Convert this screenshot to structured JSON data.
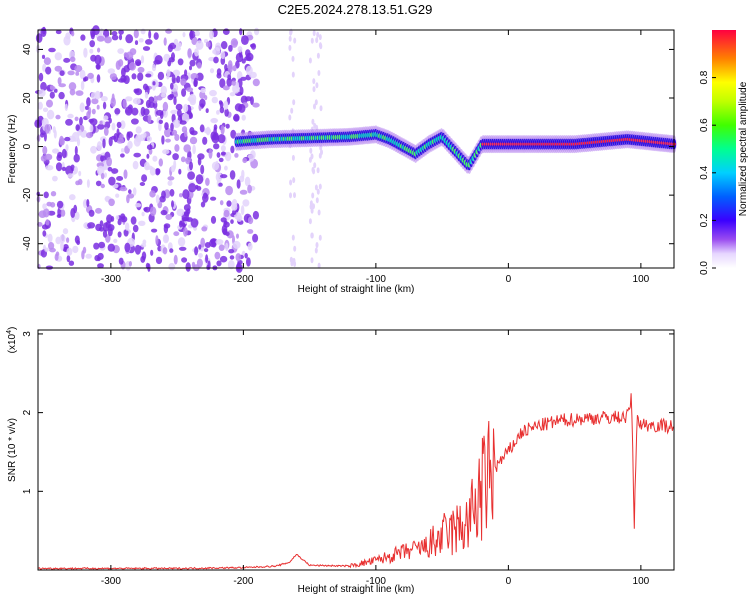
{
  "title": "C2E5.2024.278.13.51.G29",
  "chart_data": [
    {
      "type": "heatmap",
      "xlabel": "Height of straight line (km)",
      "ylabel": "Frequency (Hz)",
      "xlim": [
        -355,
        125
      ],
      "ylim": [
        -50,
        48
      ],
      "x_ticks": [
        -300,
        -200,
        -100,
        0,
        100
      ],
      "y_ticks": [
        -40,
        -20,
        0,
        20,
        40
      ],
      "noise_region": {
        "x_from": -355,
        "x_to": -190
      },
      "signal_ridge": {
        "x": [
          -205,
          -180,
          -150,
          -120,
          -100,
          -90,
          -80,
          -70,
          -60,
          -50,
          -40,
          -30,
          -20,
          0,
          50,
          90,
          125
        ],
        "y": [
          2,
          3,
          3.5,
          4,
          5,
          3,
          0,
          -3,
          1,
          4,
          -2,
          -8,
          1,
          1,
          1,
          3,
          1
        ]
      },
      "colorbar": {
        "label": "Normalized spectral amplitude",
        "range": [
          0,
          1
        ],
        "ticks": [
          0.0,
          0.2,
          0.4,
          0.6,
          0.8
        ]
      }
    },
    {
      "type": "line",
      "xlabel": "Height of straight line (km)",
      "ylabel": "SNR (10 * v/v)",
      "y_scale_label": "(x10",
      "y_scale_exp": "4",
      "y_scale_close": ")",
      "xlim": [
        -355,
        125
      ],
      "ylim": [
        0,
        3.05
      ],
      "x_ticks": [
        -300,
        -200,
        -100,
        0,
        100
      ],
      "y_ticks": [
        1,
        2,
        3
      ],
      "series": [
        {
          "color": "#e83030",
          "x": [
            -355,
            -250,
            -200,
            -175,
            -165,
            -160,
            -150,
            -120,
            -100,
            -80,
            -60,
            -50,
            -40,
            -30,
            -25,
            -20,
            -15,
            -10,
            0,
            10,
            20,
            40,
            60,
            80,
            90,
            93,
            95,
            97,
            100,
            110,
            125
          ],
          "y": [
            0.02,
            0.02,
            0.03,
            0.05,
            0.1,
            0.2,
            0.06,
            0.05,
            0.12,
            0.22,
            0.3,
            0.42,
            0.5,
            0.6,
            0.8,
            1.0,
            1.15,
            1.3,
            1.5,
            1.75,
            1.82,
            1.9,
            1.93,
            1.94,
            1.95,
            2.2,
            0.5,
            1.95,
            1.85,
            1.84,
            1.83
          ]
        }
      ]
    }
  ]
}
